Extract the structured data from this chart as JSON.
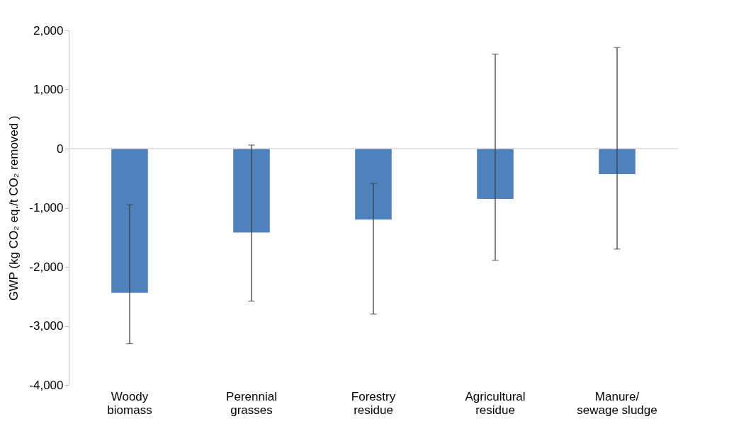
{
  "chart_data": {
    "type": "bar",
    "ylabel": "GWP (kg CO₂ eq./t CO₂ removed )",
    "categories": [
      "Woody biomass",
      "Perennial grasses",
      "Forestry residue",
      "Agricultural residue",
      "Manure/ sewage sludge"
    ],
    "values": [
      -2440,
      -1420,
      -1200,
      -850,
      -430
    ],
    "color": "#4f81bd",
    "errors": [
      [
        -3300,
        -950
      ],
      [
        -2580,
        60
      ],
      [
        -2800,
        -590
      ],
      [
        -1890,
        1600
      ],
      [
        -1700,
        1710
      ]
    ],
    "ylim": [
      -4000,
      2000
    ],
    "yticks": [
      {
        "value": -4000,
        "label": "-4,000"
      },
      {
        "value": -3000,
        "label": "-3,000"
      },
      {
        "value": -2000,
        "label": "-2,000"
      },
      {
        "value": -1000,
        "label": "-1,000"
      },
      0,
      {
        "value": 1000,
        "label": "1,000"
      },
      {
        "value": 2000,
        "label": "2,000"
      }
    ],
    "ref_lines": [
      {
        "axis": "y",
        "value": 0,
        "color": "#d9d9d9"
      }
    ],
    "grid": false
  }
}
